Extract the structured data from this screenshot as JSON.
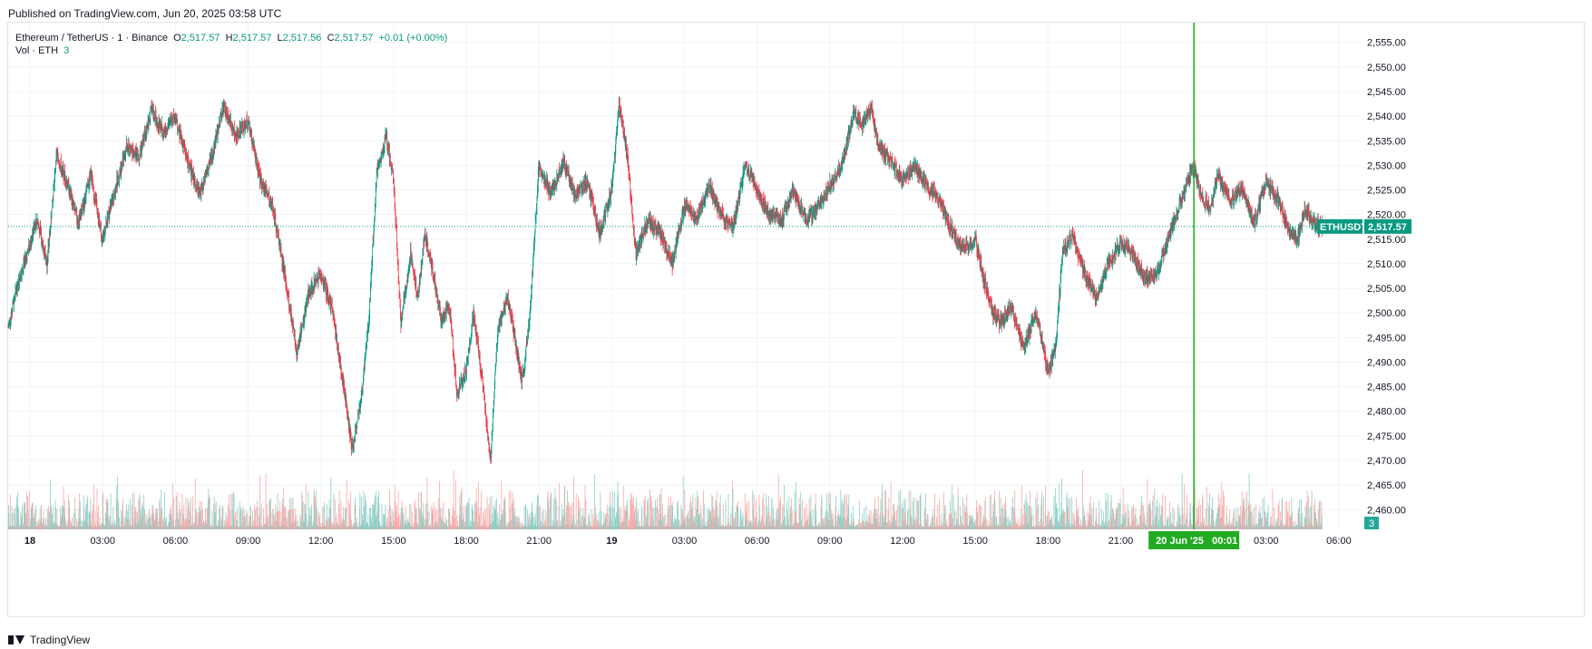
{
  "header": {
    "published": "Published on TradingView.com, Jun 20, 2025 03:58 UTC"
  },
  "legend": {
    "symbol": "Ethereum / TetherUS · 1 · Binance",
    "o_label": "O",
    "o_value": "2,517.57",
    "h_label": "H",
    "h_value": "2,517.57",
    "l_label": "L",
    "l_value": "2,517.56",
    "c_label": "C",
    "c_value": "2,517.57",
    "change": "+0.01 (+0.00%)"
  },
  "volume_legend": {
    "label": "Vol · ETH",
    "value": "3"
  },
  "badges": {
    "price_symbol": "ETHUSDT",
    "price_value": "2,517.57",
    "volume_value": "3",
    "crosshair_time": "20 Jun '25   00:01"
  },
  "footer": {
    "brand": "TradingView"
  },
  "colors": {
    "up": "#089981",
    "down": "#f23645",
    "crosshair": "#22ab22",
    "grid": "#f0f3fa",
    "text": "#131722"
  },
  "chart_data": {
    "type": "candlestick",
    "title": "Ethereum / TetherUS · 1 · Binance",
    "ylim": [
      2456,
      2559
    ],
    "y_ticks": [
      "2,460.00",
      "2,465.00",
      "2,470.00",
      "2,475.00",
      "2,480.00",
      "2,485.00",
      "2,490.00",
      "2,495.00",
      "2,500.00",
      "2,505.00",
      "2,510.00",
      "2,515.00",
      "2,520.00",
      "2,525.00",
      "2,530.00",
      "2,535.00",
      "2,540.00",
      "2,545.00",
      "2,550.00",
      "2,555.00"
    ],
    "x_ticks": [
      "18",
      "03:00",
      "06:00",
      "09:00",
      "12:00",
      "15:00",
      "18:00",
      "21:00",
      "19",
      "03:00",
      "06:00",
      "09:00",
      "12:00",
      "15:00",
      "18:00",
      "21:00",
      "20 Jun '25",
      "03:00",
      "06:00"
    ],
    "x_tick_hours": [
      0,
      3,
      6,
      9,
      12,
      15,
      18,
      21,
      24,
      27,
      30,
      33,
      36,
      39,
      42,
      45,
      48,
      51,
      54
    ],
    "x_range_hours": [
      -0.9,
      54.9
    ],
    "last_price": 2517.57,
    "crosshair_hour": 48.02,
    "price_path": [
      [
        -0.9,
        2497
      ],
      [
        -0.5,
        2506
      ],
      [
        0.3,
        2519
      ],
      [
        0.7,
        2510
      ],
      [
        1.1,
        2532
      ],
      [
        1.5,
        2527
      ],
      [
        2.0,
        2518
      ],
      [
        2.5,
        2528
      ],
      [
        3.0,
        2515
      ],
      [
        3.5,
        2525
      ],
      [
        4.0,
        2534
      ],
      [
        4.5,
        2532
      ],
      [
        5.0,
        2541
      ],
      [
        5.5,
        2537
      ],
      [
        6.0,
        2540
      ],
      [
        6.5,
        2531
      ],
      [
        7.0,
        2524
      ],
      [
        7.5,
        2532
      ],
      [
        8.0,
        2542
      ],
      [
        8.5,
        2536
      ],
      [
        9.0,
        2539
      ],
      [
        9.5,
        2527
      ],
      [
        10.0,
        2522
      ],
      [
        10.5,
        2508
      ],
      [
        11.0,
        2492
      ],
      [
        11.5,
        2504
      ],
      [
        12.0,
        2508
      ],
      [
        12.5,
        2500
      ],
      [
        13.0,
        2483
      ],
      [
        13.3,
        2472
      ],
      [
        13.7,
        2484
      ],
      [
        14.0,
        2500
      ],
      [
        14.3,
        2528
      ],
      [
        14.7,
        2536
      ],
      [
        15.0,
        2527
      ],
      [
        15.3,
        2498
      ],
      [
        15.7,
        2512
      ],
      [
        16.0,
        2503
      ],
      [
        16.3,
        2516
      ],
      [
        16.7,
        2506
      ],
      [
        17.0,
        2498
      ],
      [
        17.3,
        2502
      ],
      [
        17.6,
        2484
      ],
      [
        18.0,
        2488
      ],
      [
        18.3,
        2500
      ],
      [
        18.7,
        2485
      ],
      [
        19.0,
        2470
      ],
      [
        19.3,
        2497
      ],
      [
        19.7,
        2503
      ],
      [
        20.0,
        2495
      ],
      [
        20.3,
        2486
      ],
      [
        20.6,
        2498
      ],
      [
        21.0,
        2530
      ],
      [
        21.5,
        2524
      ],
      [
        22.0,
        2531
      ],
      [
        22.5,
        2524
      ],
      [
        23.0,
        2527
      ],
      [
        23.5,
        2516
      ],
      [
        24.0,
        2525
      ],
      [
        24.3,
        2542
      ],
      [
        24.6,
        2534
      ],
      [
        25.0,
        2512
      ],
      [
        25.5,
        2519
      ],
      [
        26.0,
        2516
      ],
      [
        26.5,
        2510
      ],
      [
        27.0,
        2522
      ],
      [
        27.5,
        2519
      ],
      [
        28.0,
        2526
      ],
      [
        28.5,
        2520
      ],
      [
        29.0,
        2517
      ],
      [
        29.5,
        2530
      ],
      [
        30.0,
        2525
      ],
      [
        30.5,
        2520
      ],
      [
        31.0,
        2519
      ],
      [
        31.5,
        2525
      ],
      [
        32.0,
        2519
      ],
      [
        32.5,
        2521
      ],
      [
        33.0,
        2526
      ],
      [
        33.5,
        2530
      ],
      [
        34.0,
        2541
      ],
      [
        34.3,
        2538
      ],
      [
        34.7,
        2542
      ],
      [
        35.0,
        2534
      ],
      [
        35.5,
        2531
      ],
      [
        36.0,
        2527
      ],
      [
        36.5,
        2530
      ],
      [
        37.0,
        2526
      ],
      [
        37.5,
        2523
      ],
      [
        38.0,
        2517
      ],
      [
        38.5,
        2513
      ],
      [
        39.0,
        2515
      ],
      [
        39.3,
        2508
      ],
      [
        39.7,
        2500
      ],
      [
        40.0,
        2498
      ],
      [
        40.5,
        2501
      ],
      [
        41.0,
        2493
      ],
      [
        41.5,
        2500
      ],
      [
        42.0,
        2488
      ],
      [
        42.3,
        2493
      ],
      [
        42.6,
        2512
      ],
      [
        43.0,
        2516
      ],
      [
        43.5,
        2508
      ],
      [
        44.0,
        2503
      ],
      [
        44.5,
        2510
      ],
      [
        45.0,
        2514
      ],
      [
        45.5,
        2512
      ],
      [
        46.0,
        2507
      ],
      [
        46.5,
        2508
      ],
      [
        47.0,
        2516
      ],
      [
        47.5,
        2523
      ],
      [
        48.0,
        2530
      ],
      [
        48.3,
        2524
      ],
      [
        48.7,
        2521
      ],
      [
        49.0,
        2528
      ],
      [
        49.5,
        2523
      ],
      [
        50.0,
        2525
      ],
      [
        50.5,
        2518
      ],
      [
        51.0,
        2527
      ],
      [
        51.5,
        2523
      ],
      [
        52.0,
        2516
      ],
      [
        52.3,
        2515
      ],
      [
        52.6,
        2521
      ],
      [
        53.0,
        2518
      ],
      [
        53.3,
        2517.57
      ]
    ],
    "volume_range": [
      0,
      100
    ]
  }
}
